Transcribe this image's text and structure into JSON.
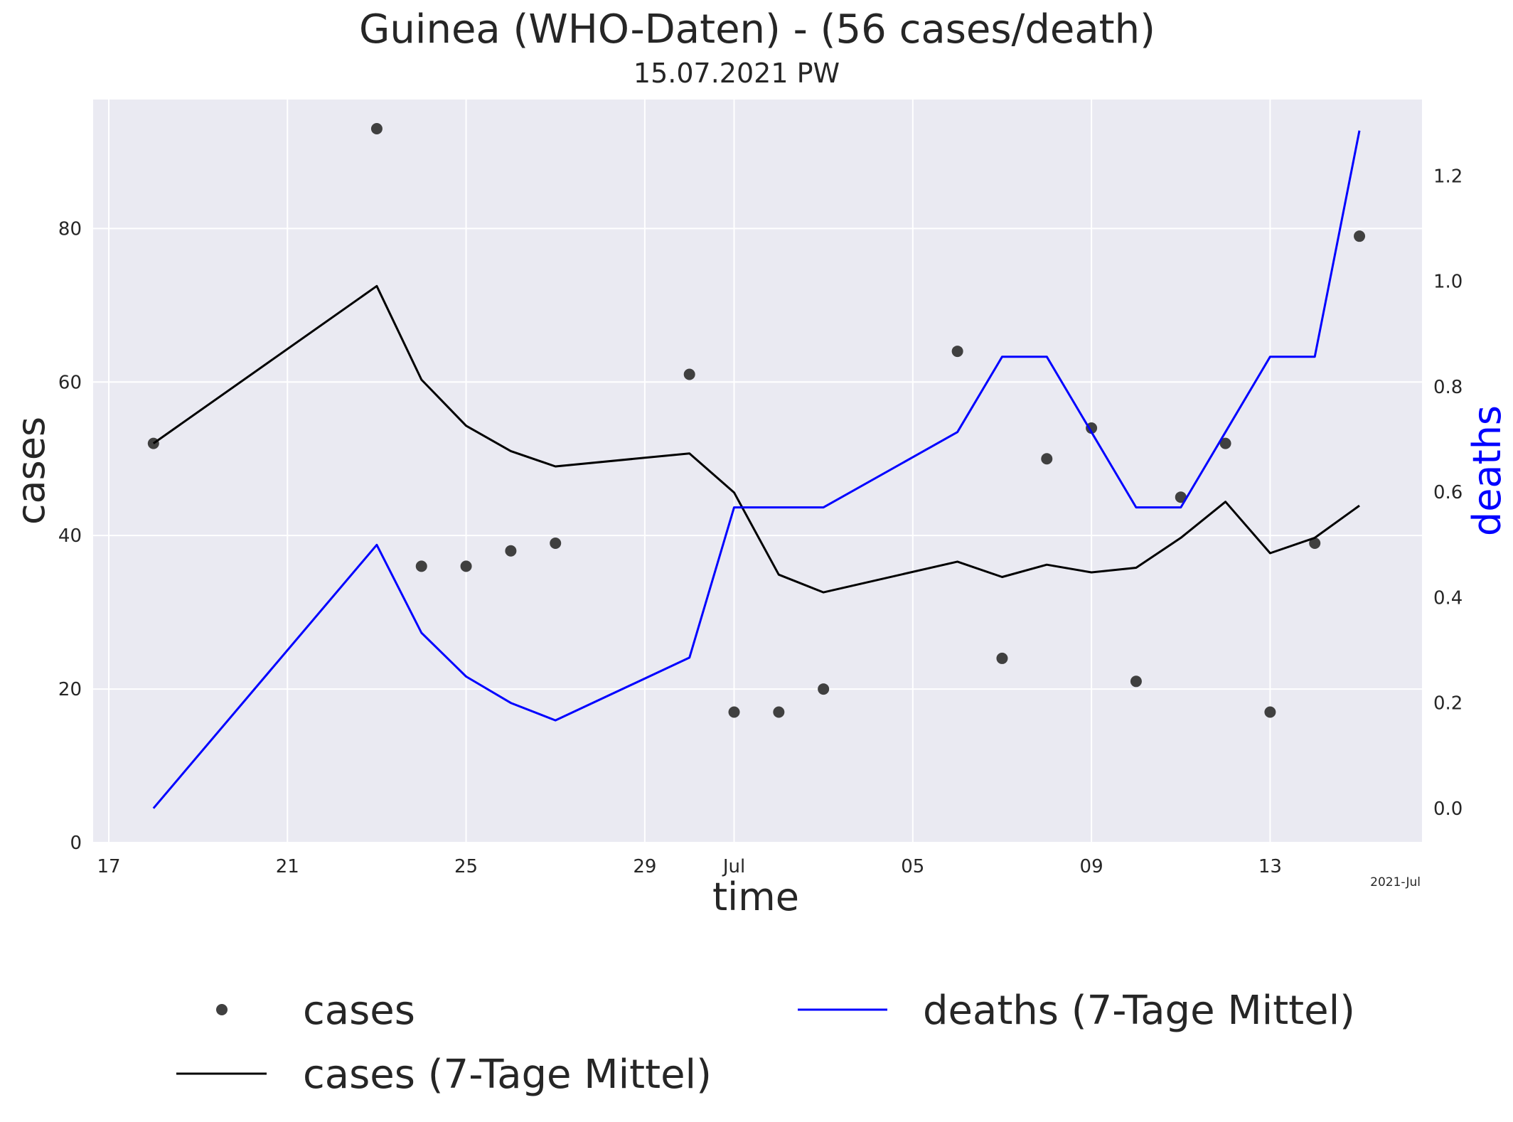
{
  "chart_data": {
    "type": "line",
    "title": "Guinea (WHO-Daten) - (56 cases/death)",
    "subtitle": "15.07.2021 PW",
    "xlabel": "time",
    "ylabel_left": "cases",
    "ylabel_right": "deaths",
    "x_corner_label": "2021-Jul",
    "x_tick_labels": [
      "17",
      "21",
      "25",
      "29",
      "Jul",
      "05",
      "09",
      "13"
    ],
    "x_tick_dates": [
      "2021-06-17",
      "2021-06-21",
      "2021-06-25",
      "2021-06-29",
      "2021-07-01",
      "2021-07-05",
      "2021-07-09",
      "2021-07-13"
    ],
    "xlim": [
      "2021-06-16.65",
      "2021-07-16.4"
    ],
    "ylim_left": [
      0,
      96.8
    ],
    "ylim_right": [
      -0.065,
      1.345
    ],
    "yticks_left": [
      0,
      20,
      40,
      60,
      80
    ],
    "yticks_right": [
      "0.0",
      "0.2",
      "0.4",
      "0.6",
      "0.8",
      "1.0",
      "1.2"
    ],
    "grid": true,
    "legend_position": "bottom",
    "colors": {
      "background": "#eaeaf2",
      "grid": "#ffffff",
      "cases_points": "#404040",
      "cases_avg": "#000000",
      "deaths_avg": "#0000ff",
      "right_axis_label": "#0000ff",
      "text": "#262626"
    },
    "series": [
      {
        "name": "cases",
        "style": "points",
        "axis": "left",
        "x": [
          "2021-06-18",
          "2021-06-23",
          "2021-06-24",
          "2021-06-25",
          "2021-06-26",
          "2021-06-27",
          "2021-06-30",
          "2021-07-01",
          "2021-07-02",
          "2021-07-03",
          "2021-07-06",
          "2021-07-07",
          "2021-07-08",
          "2021-07-09",
          "2021-07-10",
          "2021-07-11",
          "2021-07-12",
          "2021-07-13",
          "2021-07-14",
          "2021-07-15"
        ],
        "values": [
          52,
          93,
          36,
          36,
          38,
          39,
          61,
          17,
          17,
          20,
          64,
          24,
          50,
          54,
          21,
          45,
          52,
          17,
          39,
          79
        ]
      },
      {
        "name": "cases (7-Tage Mittel)",
        "style": "line",
        "axis": "left",
        "x": [
          "2021-06-18",
          "2021-06-23",
          "2021-06-24",
          "2021-06-25",
          "2021-06-26",
          "2021-06-27",
          "2021-06-30",
          "2021-07-01",
          "2021-07-02",
          "2021-07-03",
          "2021-07-06",
          "2021-07-07",
          "2021-07-08",
          "2021-07-09",
          "2021-07-10",
          "2021-07-11",
          "2021-07-12",
          "2021-07-13",
          "2021-07-14",
          "2021-07-15"
        ],
        "values": [
          52.0,
          72.5,
          60.3,
          54.3,
          51.0,
          49.0,
          50.7,
          45.6,
          34.9,
          32.6,
          36.6,
          34.6,
          36.2,
          35.2,
          35.8,
          39.7,
          44.4,
          37.7,
          39.7,
          43.9
        ]
      },
      {
        "name": "deaths (7-Tage Mittel)",
        "style": "line",
        "axis": "right",
        "x": [
          "2021-06-18",
          "2021-06-23",
          "2021-06-24",
          "2021-06-25",
          "2021-06-26",
          "2021-06-27",
          "2021-06-30",
          "2021-07-01",
          "2021-07-02",
          "2021-07-03",
          "2021-07-06",
          "2021-07-07",
          "2021-07-08",
          "2021-07-09",
          "2021-07-10",
          "2021-07-11",
          "2021-07-12",
          "2021-07-13",
          "2021-07-14",
          "2021-07-15"
        ],
        "values": [
          0.0,
          0.5,
          0.333,
          0.25,
          0.2,
          0.167,
          0.286,
          0.571,
          0.571,
          0.571,
          0.714,
          0.857,
          0.857,
          0.714,
          0.571,
          0.571,
          0.714,
          0.857,
          0.857,
          1.286
        ]
      }
    ]
  }
}
